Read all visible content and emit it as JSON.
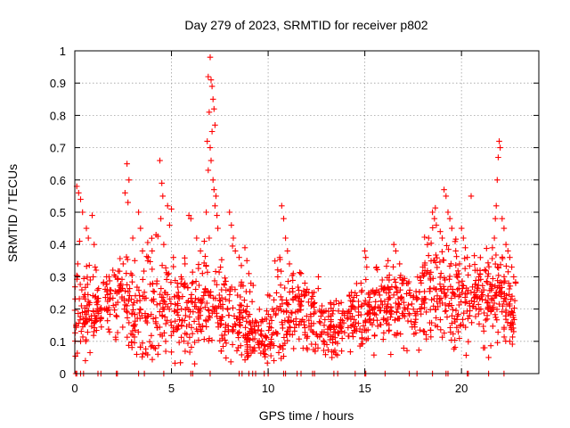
{
  "chart_data": {
    "type": "scatter",
    "title": "Day 279 of 2023, SRMTID for receiver p802",
    "xlabel": "GPS time / hours",
    "ylabel": "SRMTID / TECUs",
    "xlim": [
      0,
      24
    ],
    "ylim": [
      0,
      1
    ],
    "xticks": [
      0,
      5,
      10,
      15,
      20
    ],
    "yticks": [
      0,
      0.1,
      0.2,
      0.3,
      0.4,
      0.5,
      0.6,
      0.7,
      0.8,
      0.9,
      1
    ],
    "xtick_labels": [
      "0",
      "5",
      "10",
      "15",
      "20"
    ],
    "ytick_labels": [
      "0",
      "0.1",
      "0.2",
      "0.3",
      "0.4",
      "0.5",
      "0.6",
      "0.7",
      "0.8",
      "0.9",
      "1"
    ],
    "grid": true,
    "marker": "+",
    "color": "#ff0000",
    "baseline_level": 0,
    "baseline_hours": [
      0.05,
      0.1,
      0.3,
      0.45,
      1.2,
      1.35,
      2.15,
      2.2,
      3.3,
      3.6,
      4.6,
      6.0,
      6.1,
      7.0,
      8.5,
      8.65,
      9.0,
      9.2,
      9.35,
      9.8,
      10.0,
      10.8,
      10.9,
      11.5,
      11.7,
      12.3,
      12.4,
      13.4,
      13.6,
      14.5,
      15.0,
      15.05,
      16.05,
      17.3,
      17.7,
      18.5,
      19.2,
      19.3,
      20.3,
      20.35,
      21.4,
      22.2
    ],
    "density_profile": [
      {
        "hour": 0.0,
        "center": 0.2,
        "spread": 0.07
      },
      {
        "hour": 0.5,
        "center": 0.18,
        "spread": 0.08
      },
      {
        "hour": 1.3,
        "center": 0.2,
        "spread": 0.05
      },
      {
        "hour": 2.4,
        "center": 0.26,
        "spread": 0.06
      },
      {
        "hour": 3.0,
        "center": 0.18,
        "spread": 0.08
      },
      {
        "hour": 4.0,
        "center": 0.22,
        "spread": 0.09
      },
      {
        "hour": 5.5,
        "center": 0.18,
        "spread": 0.07
      },
      {
        "hour": 6.5,
        "center": 0.22,
        "spread": 0.07
      },
      {
        "hour": 7.5,
        "center": 0.2,
        "spread": 0.07
      },
      {
        "hour": 8.5,
        "center": 0.18,
        "spread": 0.07
      },
      {
        "hour": 9.5,
        "center": 0.12,
        "spread": 0.04
      },
      {
        "hour": 10.5,
        "center": 0.18,
        "spread": 0.07
      },
      {
        "hour": 11.5,
        "center": 0.2,
        "spread": 0.06
      },
      {
        "hour": 12.5,
        "center": 0.16,
        "spread": 0.05
      },
      {
        "hour": 13.5,
        "center": 0.14,
        "spread": 0.04
      },
      {
        "hour": 14.5,
        "center": 0.17,
        "spread": 0.05
      },
      {
        "hour": 15.5,
        "center": 0.2,
        "spread": 0.06
      },
      {
        "hour": 16.5,
        "center": 0.22,
        "spread": 0.06
      },
      {
        "hour": 17.5,
        "center": 0.2,
        "spread": 0.06
      },
      {
        "hour": 18.5,
        "center": 0.28,
        "spread": 0.09
      },
      {
        "hour": 19.5,
        "center": 0.24,
        "spread": 0.08
      },
      {
        "hour": 20.5,
        "center": 0.22,
        "spread": 0.07
      },
      {
        "hour": 21.5,
        "center": 0.26,
        "spread": 0.08
      },
      {
        "hour": 22.6,
        "center": 0.2,
        "spread": 0.06
      }
    ],
    "points": [
      [
        0.1,
        0.58
      ],
      [
        0.2,
        0.56
      ],
      [
        0.3,
        0.54
      ],
      [
        0.4,
        0.5
      ],
      [
        0.25,
        0.41
      ],
      [
        0.15,
        0.34
      ],
      [
        0.6,
        0.45
      ],
      [
        0.7,
        0.42
      ],
      [
        0.9,
        0.49
      ],
      [
        1.0,
        0.4
      ],
      [
        1.05,
        0.33
      ],
      [
        0.95,
        0.3
      ],
      [
        0.8,
        0.29
      ],
      [
        0.55,
        0.04
      ],
      [
        0.3,
        0.1
      ],
      [
        1.3,
        0.2
      ],
      [
        1.35,
        0.17
      ],
      [
        2.7,
        0.65
      ],
      [
        2.8,
        0.6
      ],
      [
        2.6,
        0.56
      ],
      [
        2.75,
        0.53
      ],
      [
        3.3,
        0.5
      ],
      [
        3.4,
        0.45
      ],
      [
        3.0,
        0.42
      ],
      [
        3.1,
        0.35
      ],
      [
        3.5,
        0.38
      ],
      [
        2.5,
        0.34
      ],
      [
        2.9,
        0.31
      ],
      [
        4.4,
        0.66
      ],
      [
        4.5,
        0.59
      ],
      [
        4.55,
        0.55
      ],
      [
        4.45,
        0.48
      ],
      [
        4.8,
        0.52
      ],
      [
        5.0,
        0.51
      ],
      [
        4.9,
        0.46
      ],
      [
        4.2,
        0.43
      ],
      [
        4.6,
        0.4
      ],
      [
        4.0,
        0.38
      ],
      [
        3.8,
        0.36
      ],
      [
        4.3,
        0.06
      ],
      [
        4.1,
        0.08
      ],
      [
        4.7,
        0.1
      ],
      [
        5.1,
        0.36
      ],
      [
        5.3,
        0.28
      ],
      [
        5.5,
        0.3
      ],
      [
        5.7,
        0.34
      ],
      [
        5.9,
        0.49
      ],
      [
        6.0,
        0.48
      ],
      [
        6.3,
        0.42
      ],
      [
        6.5,
        0.38
      ],
      [
        6.7,
        0.41
      ],
      [
        6.2,
        0.03
      ],
      [
        7.0,
        0.98
      ],
      [
        6.9,
        0.92
      ],
      [
        7.05,
        0.91
      ],
      [
        7.1,
        0.89
      ],
      [
        7.15,
        0.85
      ],
      [
        7.2,
        0.82
      ],
      [
        6.95,
        0.81
      ],
      [
        7.25,
        0.77
      ],
      [
        7.1,
        0.75
      ],
      [
        6.85,
        0.72
      ],
      [
        7.0,
        0.7
      ],
      [
        7.05,
        0.66
      ],
      [
        6.9,
        0.63
      ],
      [
        7.15,
        0.6
      ],
      [
        7.2,
        0.57
      ],
      [
        7.3,
        0.55
      ],
      [
        7.25,
        0.52
      ],
      [
        7.35,
        0.49
      ],
      [
        6.8,
        0.5
      ],
      [
        7.4,
        0.45
      ],
      [
        6.95,
        0.42
      ],
      [
        8.0,
        0.5
      ],
      [
        8.1,
        0.46
      ],
      [
        8.2,
        0.42
      ],
      [
        8.3,
        0.38
      ],
      [
        8.5,
        0.36
      ],
      [
        8.8,
        0.39
      ],
      [
        8.9,
        0.35
      ],
      [
        9.0,
        0.31
      ],
      [
        9.3,
        0.07
      ],
      [
        9.5,
        0.09
      ],
      [
        9.7,
        0.1
      ],
      [
        10.2,
        0.12
      ],
      [
        10.5,
        0.3
      ],
      [
        10.6,
        0.36
      ],
      [
        10.7,
        0.52
      ],
      [
        10.8,
        0.48
      ],
      [
        10.9,
        0.42
      ],
      [
        11.0,
        0.38
      ],
      [
        11.1,
        0.34
      ],
      [
        11.3,
        0.31
      ],
      [
        10.3,
        0.04
      ],
      [
        11.7,
        0.31
      ],
      [
        11.9,
        0.28
      ],
      [
        12.1,
        0.25
      ],
      [
        12.4,
        0.22
      ],
      [
        12.6,
        0.3
      ],
      [
        12.8,
        0.19
      ],
      [
        13.3,
        0.05
      ],
      [
        13.5,
        0.06
      ],
      [
        13.8,
        0.07
      ],
      [
        14.2,
        0.24
      ],
      [
        14.5,
        0.25
      ],
      [
        14.8,
        0.28
      ],
      [
        15.0,
        0.38
      ],
      [
        15.05,
        0.36
      ],
      [
        15.1,
        0.33
      ],
      [
        15.2,
        0.25
      ],
      [
        15.6,
        0.33
      ],
      [
        15.9,
        0.29
      ],
      [
        16.2,
        0.35
      ],
      [
        16.5,
        0.4
      ],
      [
        16.6,
        0.38
      ],
      [
        16.8,
        0.34
      ],
      [
        17.0,
        0.28
      ],
      [
        17.3,
        0.25
      ],
      [
        18.0,
        0.33
      ],
      [
        18.3,
        0.42
      ],
      [
        18.5,
        0.5
      ],
      [
        18.6,
        0.48
      ],
      [
        18.7,
        0.46
      ],
      [
        18.9,
        0.44
      ],
      [
        19.0,
        0.42
      ],
      [
        19.1,
        0.57
      ],
      [
        19.2,
        0.55
      ],
      [
        19.3,
        0.5
      ],
      [
        19.4,
        0.48
      ],
      [
        19.5,
        0.45
      ],
      [
        19.7,
        0.38
      ],
      [
        19.9,
        0.34
      ],
      [
        20.0,
        0.45
      ],
      [
        20.1,
        0.42
      ],
      [
        20.2,
        0.39
      ],
      [
        20.3,
        0.36
      ],
      [
        20.5,
        0.55
      ],
      [
        20.7,
        0.32
      ],
      [
        20.9,
        0.3
      ],
      [
        21.0,
        0.2
      ],
      [
        21.2,
        0.08
      ],
      [
        21.4,
        0.05
      ],
      [
        21.6,
        0.39
      ],
      [
        21.7,
        0.42
      ],
      [
        21.75,
        0.48
      ],
      [
        21.8,
        0.52
      ],
      [
        21.85,
        0.6
      ],
      [
        21.9,
        0.67
      ],
      [
        21.95,
        0.72
      ],
      [
        22.0,
        0.7
      ],
      [
        22.1,
        0.48
      ],
      [
        22.2,
        0.45
      ],
      [
        22.3,
        0.4
      ],
      [
        22.4,
        0.38
      ],
      [
        22.5,
        0.36
      ],
      [
        22.6,
        0.33
      ],
      [
        22.7,
        0.3
      ],
      [
        22.8,
        0.28
      ],
      [
        22.5,
        0.1
      ],
      [
        22.7,
        0.13
      ]
    ]
  }
}
